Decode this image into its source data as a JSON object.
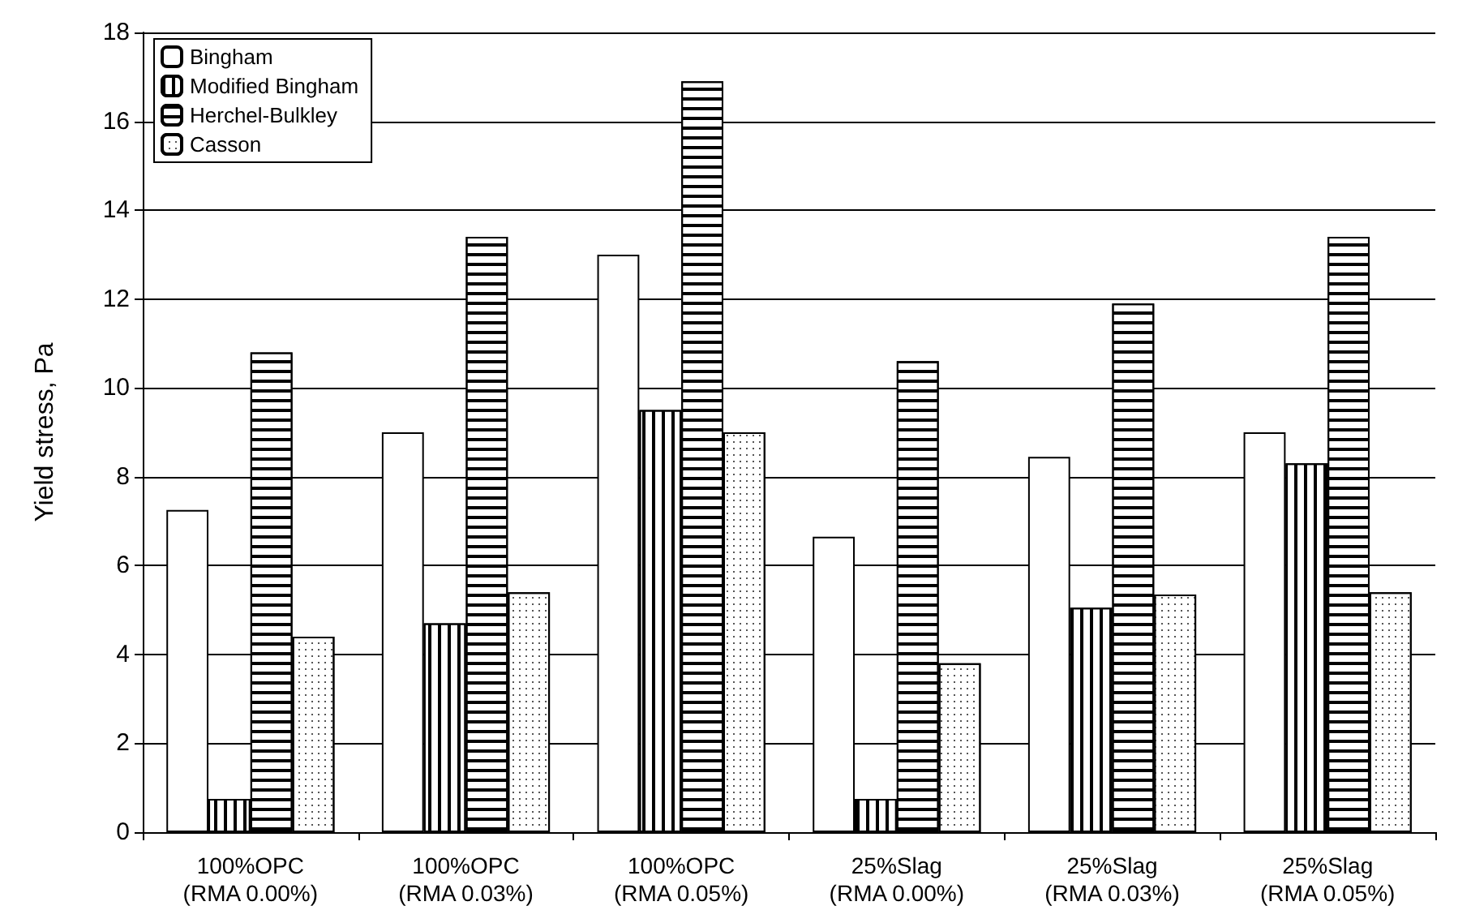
{
  "chart_data": {
    "type": "bar",
    "ylabel": "Yield stress, Pa",
    "categories": [
      "100%OPC\n(RMA 0.00%)",
      "100%OPC\n(RMA 0.03%)",
      "100%OPC\n(RMA 0.05%)",
      "25%Slag\n(RMA 0.00%)",
      "25%Slag\n(RMA 0.03%)",
      "25%Slag\n(RMA 0.05%)"
    ],
    "series": [
      {
        "name": "Bingham",
        "color": "#ffffff",
        "values": [
          7.25,
          9.0,
          13.0,
          6.65,
          8.45,
          9.0
        ]
      },
      {
        "name": "Modified Bingham",
        "color": "#ffffff",
        "values": [
          0.75,
          4.7,
          9.5,
          0.75,
          5.05,
          8.3
        ]
      },
      {
        "name": "Herchel-Bulkley",
        "color": "#ffffff",
        "values": [
          10.8,
          13.4,
          16.9,
          10.6,
          11.9,
          13.4
        ]
      },
      {
        "name": "Casson",
        "color": "#ffffff",
        "values": [
          4.4,
          5.4,
          9.0,
          3.8,
          5.35,
          5.4
        ]
      }
    ],
    "ylim": [
      0,
      18
    ],
    "yticks": [
      0,
      2,
      4,
      6,
      8,
      10,
      12,
      14,
      16,
      18
    ],
    "grid": "y",
    "legend": "top left"
  }
}
